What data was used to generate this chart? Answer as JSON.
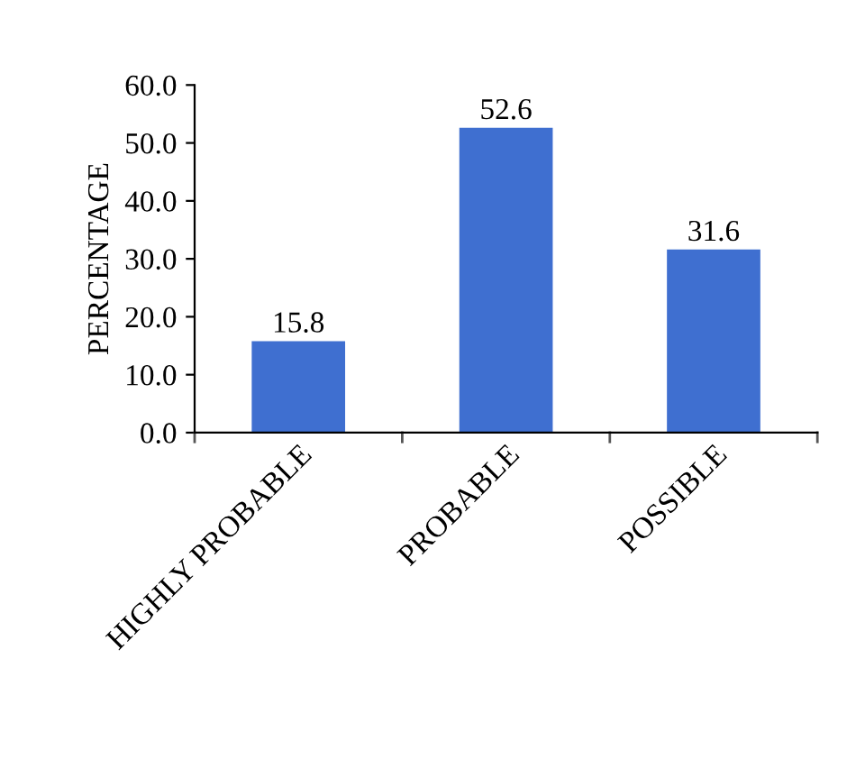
{
  "chart_data": {
    "type": "bar",
    "ylabel": "PERCENTAGE",
    "categories": [
      "HIGHLY PROBABLE",
      "PROBABLE",
      "POSSIBLE"
    ],
    "values": [
      15.8,
      52.6,
      31.6
    ],
    "color": "#3f6fd0",
    "ylim": [
      0,
      60
    ],
    "yticks": [
      {
        "value": 0,
        "label": "0.0"
      },
      {
        "value": 10,
        "label": "10.0"
      },
      {
        "value": 20,
        "label": "20.0"
      },
      {
        "value": 30,
        "label": "30.0"
      },
      {
        "value": 40,
        "label": "40.0"
      },
      {
        "value": 50,
        "label": "50.0"
      },
      {
        "value": 60,
        "label": "60.0"
      }
    ],
    "data_labels": true,
    "grid": false,
    "legend": false
  }
}
